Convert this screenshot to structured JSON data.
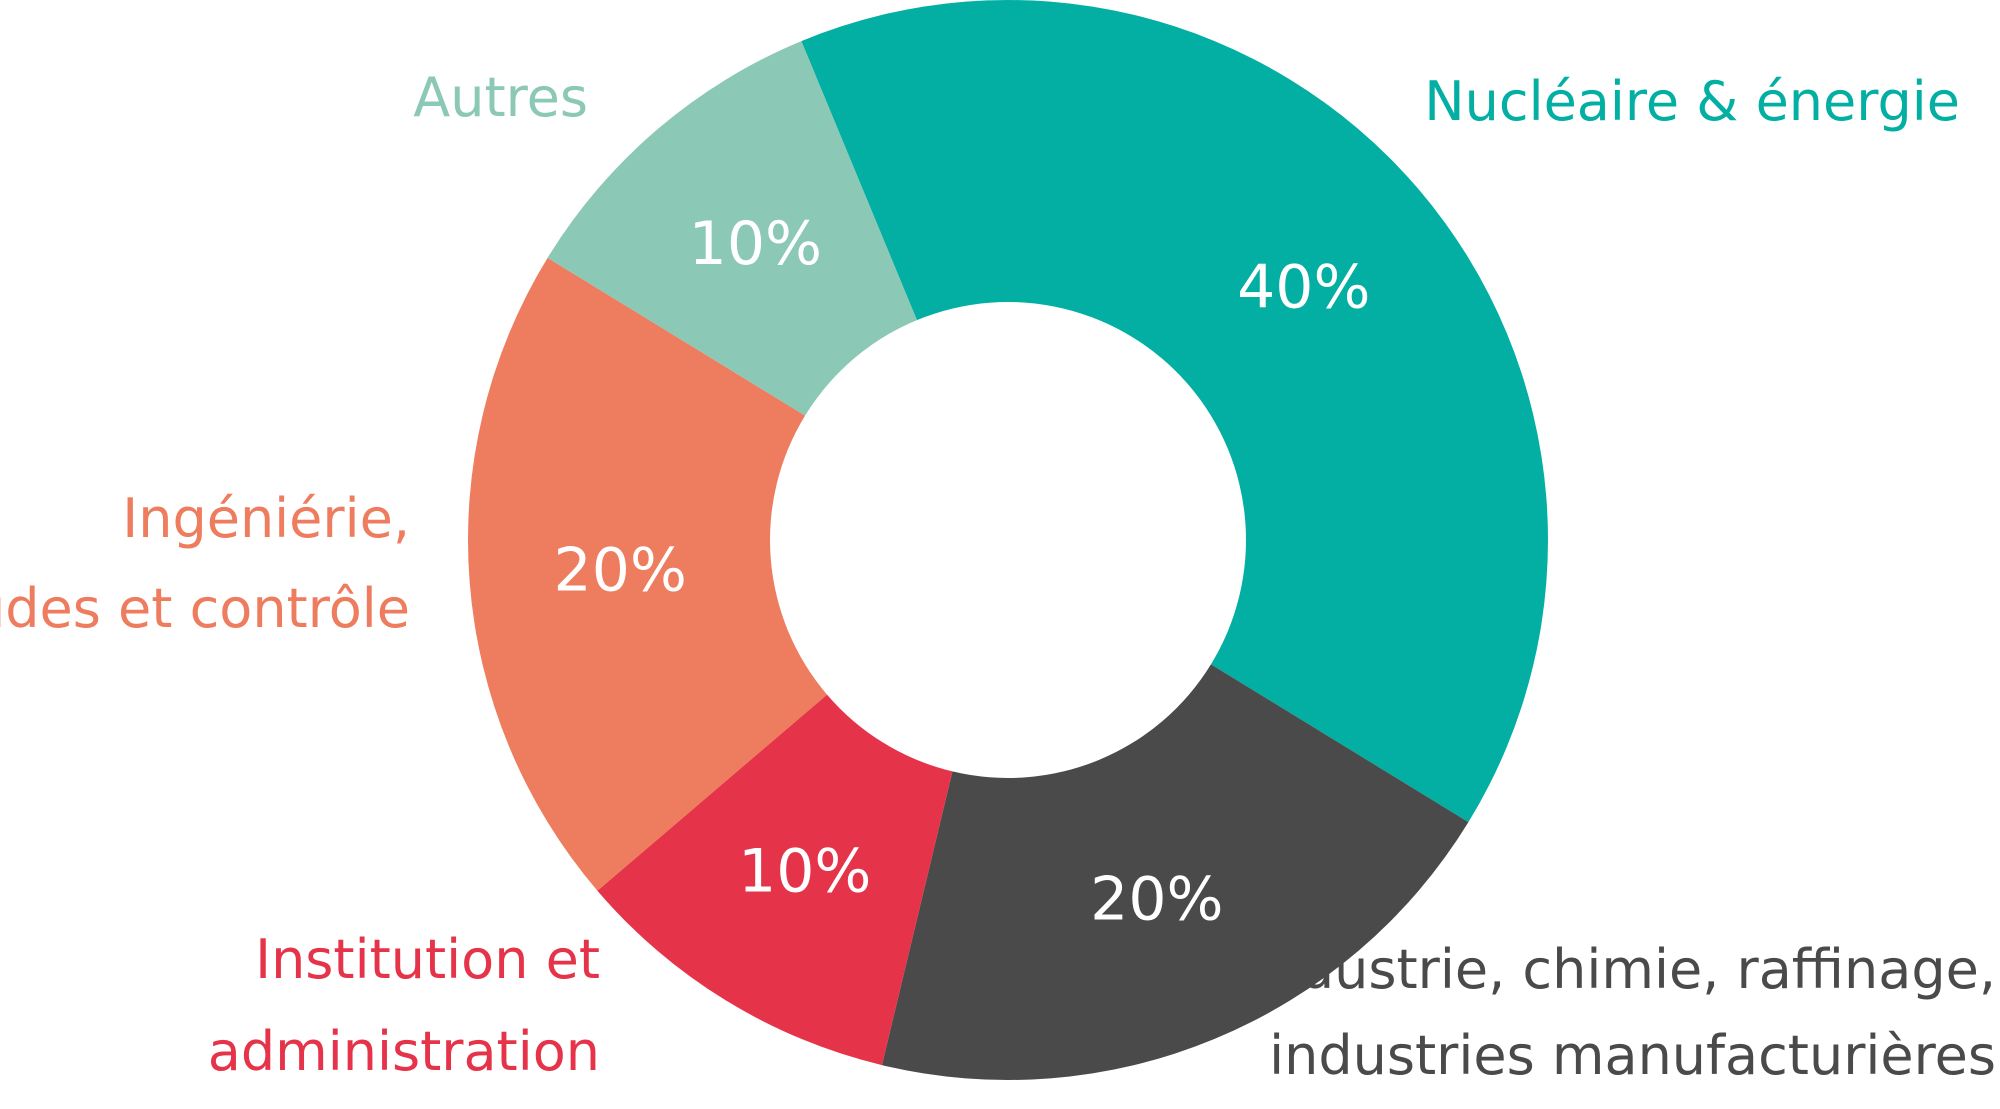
{
  "chart_data": {
    "type": "pie",
    "style": "donut",
    "categories": [
      "Nucléaire & énergie",
      "Industrie, chimie, raffinage, industries manufacturières",
      "Institution et administration",
      "Ingéniérie, études et contrôle",
      "Autres"
    ],
    "values": [
      40,
      20,
      10,
      20,
      10
    ],
    "value_labels": [
      "40%",
      "20%",
      "10%",
      "20%",
      "10%"
    ],
    "label_lines": [
      [
        "Nucléaire & énergie"
      ],
      [
        "Industrie, chimie, raffinage,",
        "industries manufacturières"
      ],
      [
        "Institution et",
        "administration"
      ],
      [
        "Ingéniérie,",
        "études et contrôle"
      ],
      [
        "Autres"
      ]
    ],
    "colors": [
      "#03AFA3",
      "#4A4A4A",
      "#E5344A",
      "#EE7C5E",
      "#8BC8B6"
    ],
    "label_colors": [
      "#03AFA3",
      "#4A4A4A",
      "#E5344A",
      "#EE7C5E",
      "#8BC8B6"
    ]
  }
}
